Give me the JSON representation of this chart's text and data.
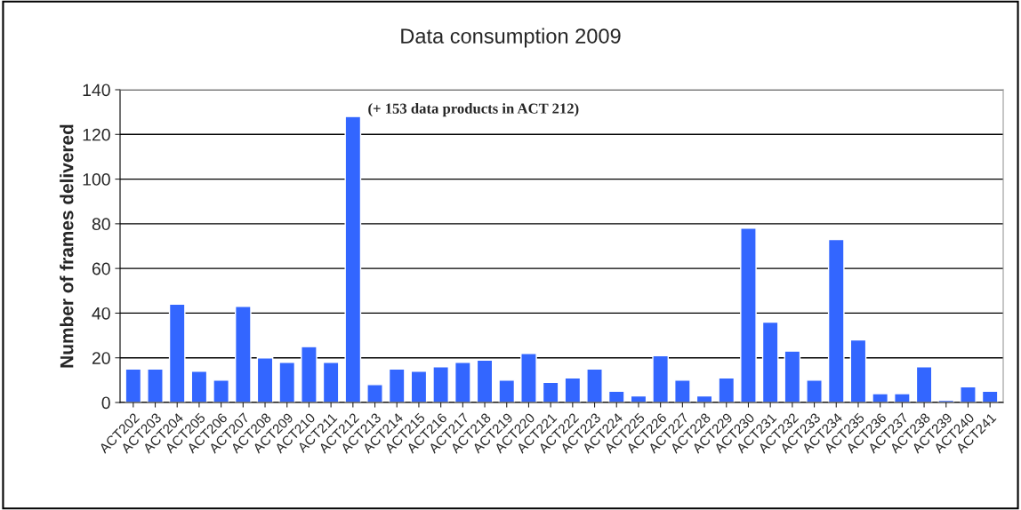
{
  "chart_data": {
    "type": "bar",
    "title": "Data consumption 2009",
    "ylabel": "Number of frames delivered",
    "categories": [
      "ACT202",
      "ACT203",
      "ACT204",
      "ACT205",
      "ACT206",
      "ACT207",
      "ACT208",
      "ACT209",
      "ACT210",
      "ACT211",
      "ACT212",
      "ACT213",
      "ACT214",
      "ACT215",
      "ACT216",
      "ACT217",
      "ACT218",
      "ACT219",
      "ACT220",
      "ACT221",
      "ACT222",
      "ACT223",
      "ACT224",
      "ACT225",
      "ACT226",
      "ACT227",
      "ACT228",
      "ACT229",
      "ACT230",
      "ACT231",
      "ACT232",
      "ACT233",
      "ACT234",
      "ACT235",
      "ACT236",
      "ACT237",
      "ACT238",
      "ACT239",
      "ACT240",
      "ACT241"
    ],
    "values": [
      15,
      15,
      44,
      14,
      10,
      43,
      20,
      18,
      25,
      18,
      128,
      8,
      15,
      14,
      16,
      18,
      19,
      10,
      22,
      9,
      11,
      15,
      5,
      3,
      21,
      10,
      3,
      11,
      78,
      36,
      23,
      10,
      73,
      28,
      4,
      4,
      16,
      1,
      7,
      5
    ],
    "color": "#3366ff",
    "ylim": [
      0,
      140
    ],
    "yticks": [
      0,
      20,
      40,
      60,
      80,
      100,
      120,
      140
    ],
    "grid": "y",
    "annotations": [
      {
        "text": "(+ 153 data products in ACT 212)",
        "x": "ACT212",
        "y": 128
      }
    ]
  }
}
